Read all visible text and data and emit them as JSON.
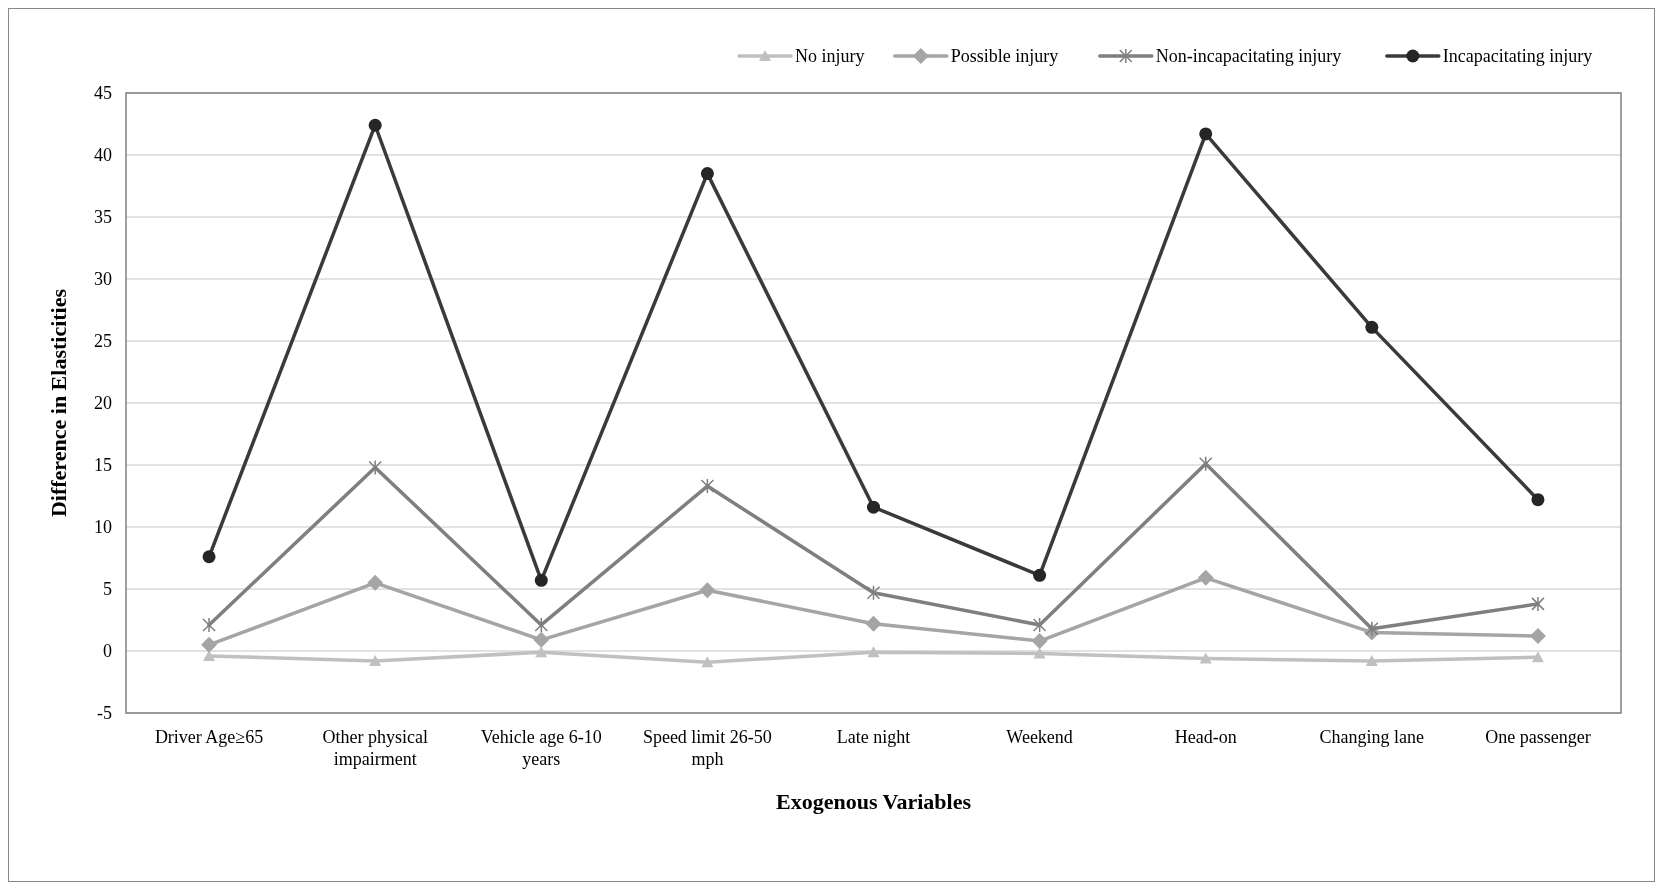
{
  "chart_data": {
    "type": "line",
    "xlabel": "Exogenous Variables",
    "ylabel": "Difference in Elasticities",
    "categories": [
      "Driver Age≥65",
      "Other physical impairment",
      "Vehicle age 6-10 years",
      "Speed limit 26-50 mph",
      "Late night",
      "Weekend",
      "Head-on",
      "Changing lane",
      "One passenger"
    ],
    "series": [
      {
        "name": "No injury",
        "color": "#c0c0c0",
        "marker": "triangle",
        "values": [
          -0.4,
          -0.8,
          -0.1,
          -0.9,
          -0.1,
          -0.2,
          -0.6,
          -0.8,
          -0.5
        ]
      },
      {
        "name": "Possible injury",
        "color": "#a5a5a5",
        "marker": "diamond",
        "values": [
          0.5,
          5.5,
          0.9,
          4.9,
          2.2,
          0.8,
          5.9,
          1.5,
          1.2
        ]
      },
      {
        "name": "Non-incapacitating injury",
        "color": "#7f7f7f",
        "marker": "cross",
        "values": [
          2.1,
          14.8,
          2.1,
          13.3,
          4.7,
          2.1,
          15.1,
          1.8,
          3.8
        ]
      },
      {
        "name": "Incapacitating injury",
        "color": "#3a3a3a",
        "marker": "circle",
        "values": [
          7.6,
          42.4,
          5.7,
          38.5,
          11.6,
          6.1,
          41.7,
          26.1,
          12.2
        ]
      }
    ],
    "ylim": [
      -5,
      45
    ],
    "yticks": [
      -5,
      0,
      5,
      10,
      15,
      20,
      25,
      30,
      35,
      40,
      45
    ],
    "grid": "y",
    "legend": "top right",
    "line_style": "solid"
  }
}
